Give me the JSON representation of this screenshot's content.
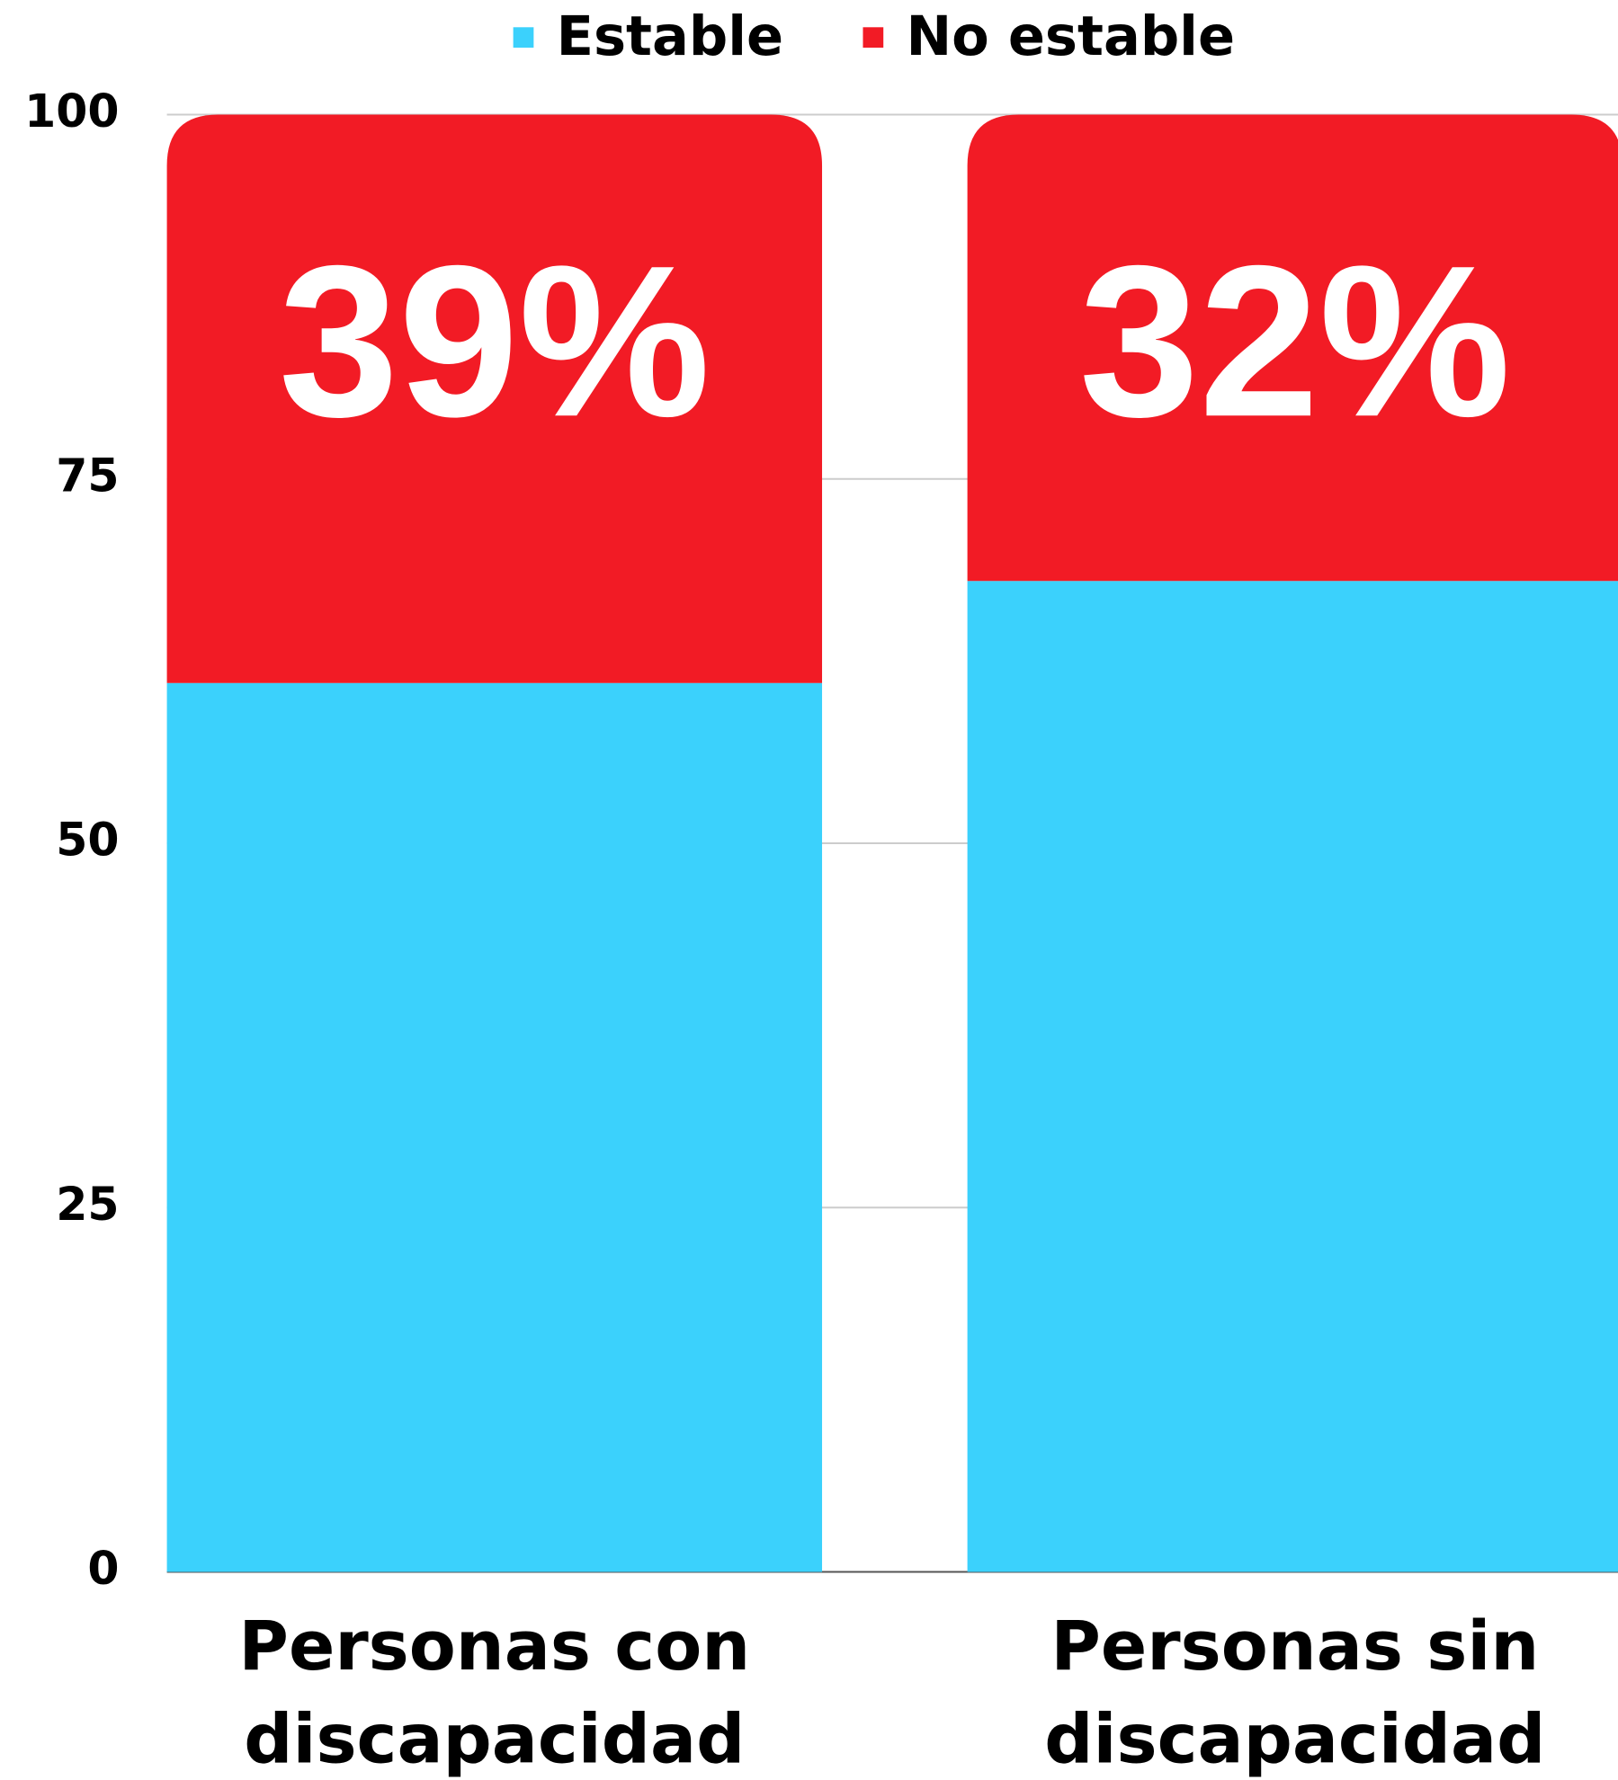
{
  "chart_data": {
    "type": "stacked_bar",
    "categories": [
      "Personas con discapacidad",
      "Personas sin discapacidad"
    ],
    "series": [
      {
        "name": "Estable",
        "color": "#3bd1fc",
        "values": [
          61,
          68
        ]
      },
      {
        "name": "No estable",
        "color": "#f21b25",
        "values": [
          39,
          32
        ],
        "value_labels": [
          "39%",
          "32%"
        ]
      }
    ],
    "ylim": [
      0,
      100
    ],
    "yticks": [
      0,
      25,
      50,
      75,
      100
    ],
    "grid": true,
    "legend": "top"
  }
}
